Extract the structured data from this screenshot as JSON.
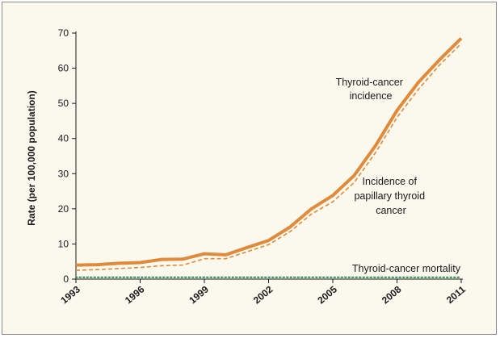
{
  "chart_data": {
    "type": "line",
    "title": "",
    "xlabel": "",
    "ylabel": "Rate (per 100,000 population)",
    "xlim": [
      1993,
      2011
    ],
    "ylim": [
      0,
      70
    ],
    "x_ticks": [
      "1993",
      "1996",
      "1999",
      "2002",
      "2005",
      "2008",
      "2011"
    ],
    "y_ticks": [
      "0",
      "10",
      "20",
      "30",
      "40",
      "50",
      "60",
      "70"
    ],
    "grid": false,
    "x": [
      1993,
      1994,
      1995,
      1996,
      1997,
      1998,
      1999,
      2000,
      2001,
      2002,
      2003,
      2004,
      2005,
      2006,
      2007,
      2008,
      2009,
      2010,
      2011
    ],
    "series": [
      {
        "name": "Thyroid-cancer incidence",
        "style": "solid-thick",
        "color": "#e08a3c",
        "values": [
          4.0,
          4.1,
          4.5,
          4.7,
          5.6,
          5.7,
          7.2,
          6.9,
          9.0,
          11.0,
          14.8,
          20.0,
          23.8,
          29.5,
          38.0,
          48.0,
          56.0,
          62.5,
          68.5
        ]
      },
      {
        "name": "Incidence of papillary thyroid cancer",
        "style": "dashed",
        "color": "#e08a3c",
        "values": [
          2.5,
          2.7,
          3.0,
          3.3,
          3.8,
          4.0,
          5.8,
          5.8,
          7.8,
          9.8,
          13.5,
          18.5,
          22.0,
          27.5,
          36.0,
          46.0,
          54.0,
          61.0,
          67.0
        ]
      },
      {
        "name": "Thyroid-cancer mortality",
        "style": "dotted",
        "color": "#2e8b57",
        "values": [
          0.5,
          0.5,
          0.5,
          0.5,
          0.5,
          0.5,
          0.5,
          0.5,
          0.5,
          0.5,
          0.5,
          0.5,
          0.5,
          0.5,
          0.5,
          0.5,
          0.5,
          0.5,
          0.5
        ]
      }
    ],
    "annotations": {
      "incidence": [
        "Thyroid-cancer",
        "incidence"
      ],
      "papillary": [
        "Incidence of",
        "papillary thyroid",
        "cancer"
      ],
      "mortality": "Thyroid-cancer mortality"
    },
    "colors": {
      "background": "#fbf8ee",
      "axis": "#1a1a1a"
    }
  }
}
